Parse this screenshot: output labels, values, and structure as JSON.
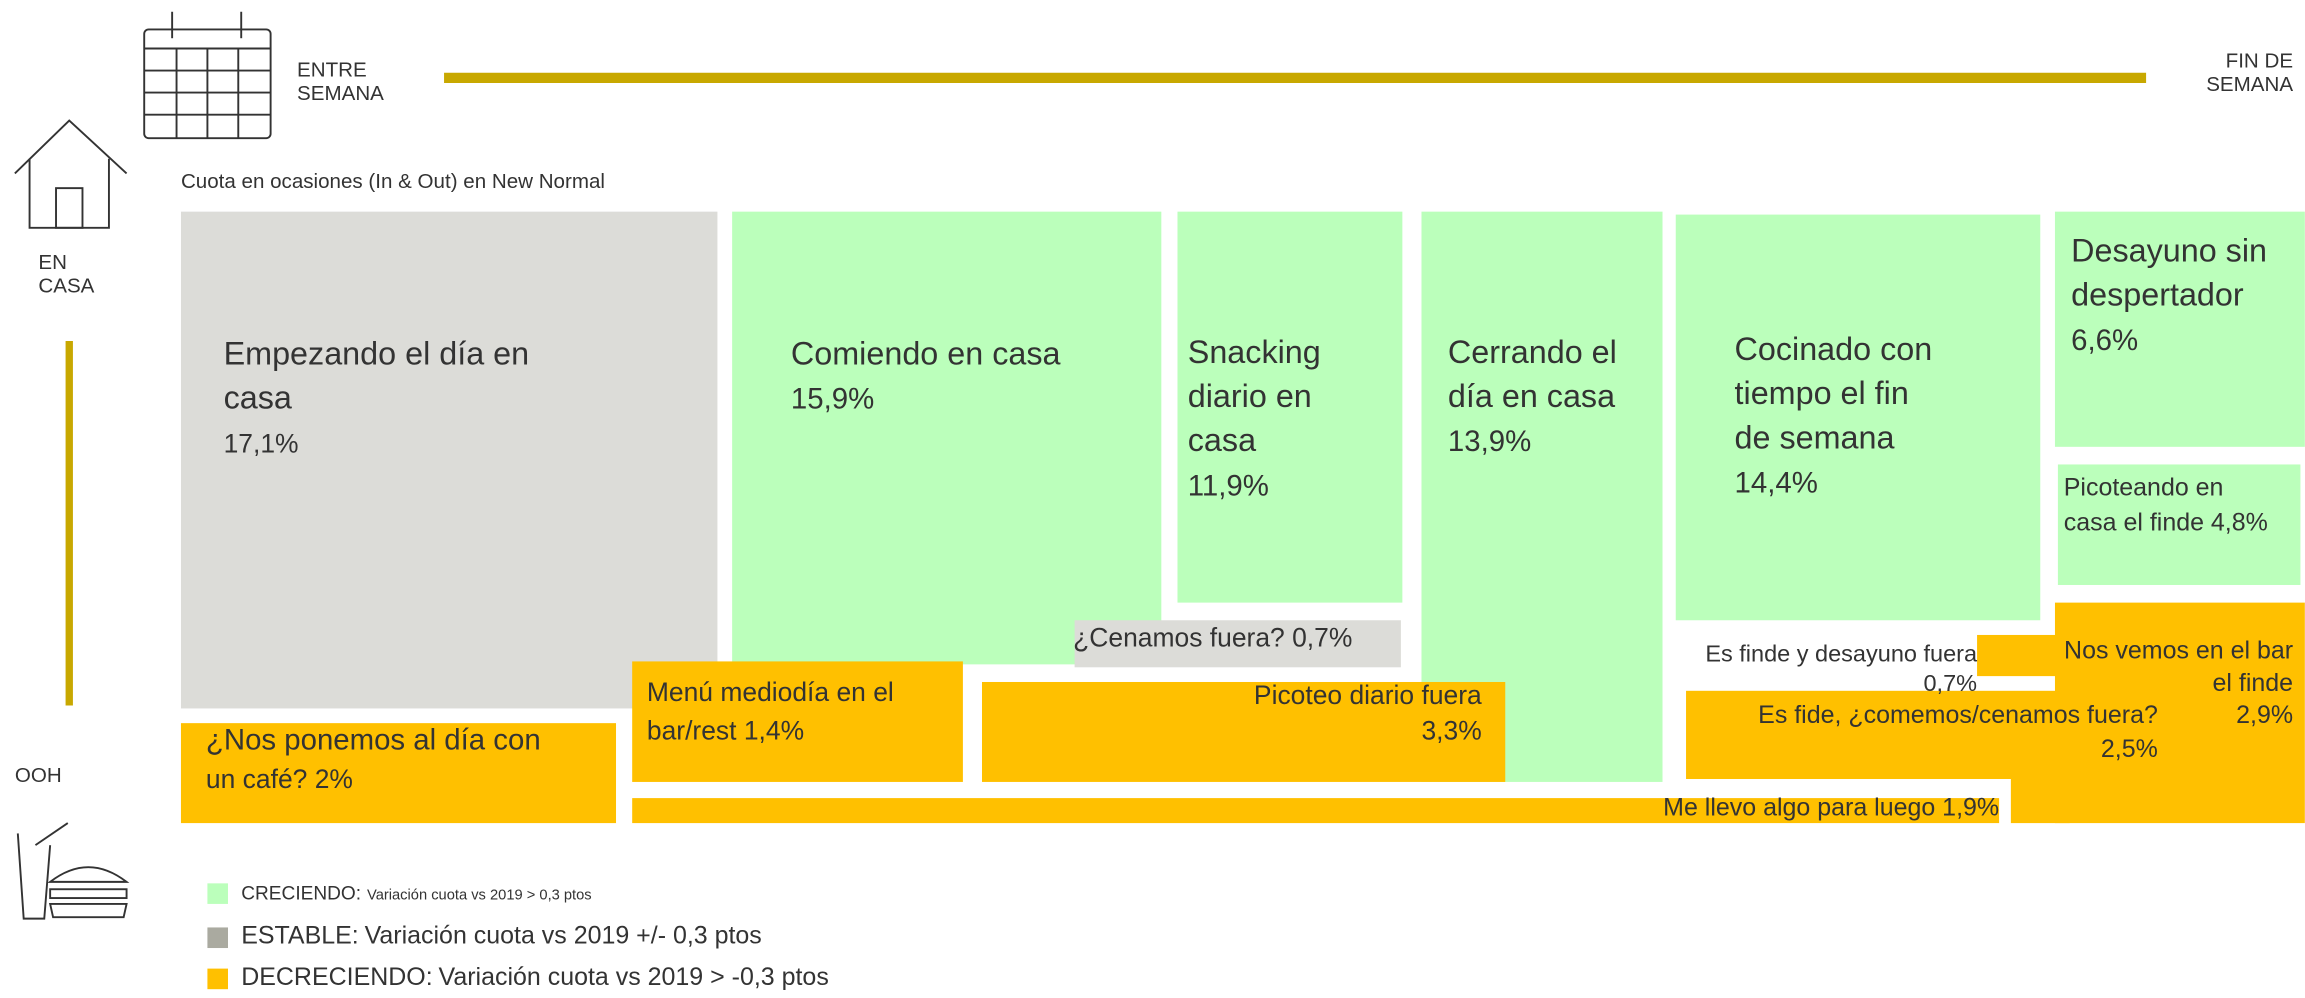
{
  "header": {
    "left_label": [
      "ENTRE",
      "SEMANA"
    ],
    "right_label": [
      "FIN DE",
      "SEMANA"
    ],
    "top_side_label": [
      "EN",
      "CASA"
    ],
    "bottom_side_label": "OOH",
    "subtitle": "Cuota en ocasiones (In & Out) en New Normal"
  },
  "blocks": [
    {
      "lines": [
        "Empezando el día en",
        "casa",
        "17,1%"
      ]
    },
    {
      "lines": [
        "Comiendo en casa",
        "15,9%"
      ]
    },
    {
      "lines": [
        "Snacking",
        "diario en",
        "casa",
        "11,9%"
      ]
    },
    {
      "lines": [
        "Cerrando el",
        "día en casa",
        "13,9%"
      ]
    },
    {
      "lines": [
        "Cocinado con",
        "tiempo el fin",
        "de semana",
        "14,4%"
      ]
    },
    {
      "lines": [
        "Desayuno sin",
        "despertador",
        "6,6%"
      ]
    },
    {
      "lines": [
        "Picoteando en",
        "casa el finde 4,8%"
      ]
    },
    {
      "lines": [
        "¿Cenamos fuera? 0,7%"
      ]
    },
    {
      "lines": [
        "¿Nos ponemos al día con",
        "un café?  2%"
      ]
    },
    {
      "lines": [
        "Menú mediodía en el",
        "bar/rest 1,4%"
      ]
    },
    {
      "lines": [
        "Picoteo diario fuera",
        "3,3%"
      ]
    },
    {
      "lines": [
        "Nos vemos en el bar",
        "el finde",
        "2,9%"
      ]
    },
    {
      "lines": [
        "Es fide, ¿comemos/cenamos fuera?",
        "2,5%"
      ]
    },
    {
      "lines": [
        "Me llevo algo para luego 1,9%"
      ]
    },
    {
      "lines": [
        "Es finde y desayuno fuera",
        "0,7%"
      ]
    }
  ],
  "legend": [
    {
      "label": "CRECIENDO:",
      "description": "Variación cuota vs 2019 >  0,3 ptos"
    },
    {
      "label": "ESTABLE:",
      "description": "Variación cuota vs 2019  +/- 0,3 ptos"
    },
    {
      "label": "DECRECIENDO:",
      "description": "Variación cuota vs 2019 > -0,3 ptos"
    }
  ]
}
